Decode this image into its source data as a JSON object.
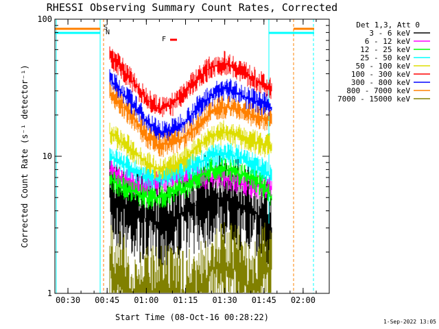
{
  "chart_data": {
    "type": "line",
    "title": "RHESSI Observing Summary Count Rates, Corrected",
    "xlabel": "Start Time (08-Oct-16 00:28:22)",
    "ylabel": "Corrected Count Rate (s⁻¹ detector⁻¹)",
    "y_scale": "log",
    "ylim": [
      1,
      100
    ],
    "xlim": [
      "00:25",
      "02:10"
    ],
    "x_tick_labels": [
      "00:30",
      "00:45",
      "01:00",
      "01:15",
      "01:30",
      "01:45",
      "02:00"
    ],
    "y_tick_labels": [
      "1",
      "10",
      "100"
    ],
    "legend_title": "Det 1,3, Att 0",
    "legend_position": "right",
    "timestamp": "1-Sep-2022 13:05",
    "flags": [
      {
        "label": "S",
        "color": "#ff8000"
      },
      {
        "label": "N",
        "color": "#00ffff"
      },
      {
        "label": "F",
        "color": "#ff0000"
      }
    ],
    "series": [
      {
        "name": "3 - 6 keV",
        "color": "#000000",
        "x": [
          "00:46",
          "00:50",
          "00:55",
          "01:00",
          "01:05",
          "01:10",
          "01:15",
          "01:20",
          "01:25",
          "01:30",
          "01:35",
          "01:40",
          "01:45",
          "01:48"
        ],
        "values": [
          5,
          4.5,
          4,
          3.5,
          3.2,
          3.5,
          4,
          4.5,
          4.8,
          5,
          4.5,
          4,
          3.5,
          2.5
        ]
      },
      {
        "name": "6 - 12 keV",
        "color": "#ff00ff",
        "x": [
          "00:46",
          "00:50",
          "00:55",
          "01:00",
          "01:05",
          "01:10",
          "01:15",
          "01:20",
          "01:25",
          "01:30",
          "01:35",
          "01:40",
          "01:45",
          "01:48"
        ],
        "values": [
          8,
          7,
          6.5,
          6,
          6.5,
          7,
          7,
          7,
          7,
          7,
          6.5,
          6,
          6,
          6
        ]
      },
      {
        "name": "12 - 25 keV",
        "color": "#00ff00",
        "x": [
          "00:46",
          "00:50",
          "00:55",
          "01:00",
          "01:05",
          "01:10",
          "01:15",
          "01:20",
          "01:25",
          "01:30",
          "01:35",
          "01:40",
          "01:45",
          "01:48"
        ],
        "values": [
          7,
          6,
          5.5,
          5,
          5,
          5.5,
          6,
          7,
          8,
          8,
          7.5,
          7,
          6,
          5
        ]
      },
      {
        "name": "25 - 50 keV",
        "color": "#00ffff",
        "x": [
          "00:46",
          "00:50",
          "00:55",
          "01:00",
          "01:05",
          "01:10",
          "01:15",
          "01:20",
          "01:25",
          "01:30",
          "01:35",
          "01:40",
          "01:45",
          "01:48"
        ],
        "values": [
          10,
          9,
          8,
          7,
          7,
          7.5,
          8,
          9,
          10,
          10.5,
          10,
          9,
          8,
          7
        ]
      },
      {
        "name": "50 - 100 keV",
        "color": "#dddd00",
        "x": [
          "00:46",
          "00:50",
          "00:55",
          "01:00",
          "01:05",
          "01:10",
          "01:15",
          "01:20",
          "01:25",
          "01:30",
          "01:35",
          "01:40",
          "01:45",
          "01:48"
        ],
        "values": [
          15,
          13,
          11,
          9,
          8,
          8.5,
          9.5,
          12,
          14,
          15,
          14,
          13,
          12,
          12
        ]
      },
      {
        "name": "100 - 300 keV",
        "color": "#ff0000",
        "x": [
          "00:46",
          "00:50",
          "00:55",
          "01:00",
          "01:05",
          "01:10",
          "01:15",
          "01:20",
          "01:25",
          "01:30",
          "01:35",
          "01:40",
          "01:45",
          "01:48"
        ],
        "values": [
          55,
          45,
          35,
          26,
          22,
          24,
          30,
          38,
          45,
          48,
          44,
          38,
          33,
          30
        ]
      },
      {
        "name": "300 - 800 keV",
        "color": "#0000ff",
        "x": [
          "00:46",
          "00:50",
          "00:55",
          "01:00",
          "01:05",
          "01:10",
          "01:15",
          "01:20",
          "01:25",
          "01:30",
          "01:35",
          "01:40",
          "01:45",
          "01:48"
        ],
        "values": [
          37,
          30,
          24,
          18,
          15,
          15.5,
          18,
          23,
          28,
          31,
          29,
          26,
          24,
          22
        ]
      },
      {
        "name": "800 - 7000 keV",
        "color": "#ff8000",
        "x": [
          "00:46",
          "00:50",
          "00:55",
          "01:00",
          "01:05",
          "01:10",
          "01:15",
          "01:20",
          "01:25",
          "01:30",
          "01:35",
          "01:40",
          "01:45",
          "01:48"
        ],
        "values": [
          30,
          24,
          19,
          14,
          12,
          12.5,
          14,
          17,
          21,
          23,
          22,
          20,
          19,
          18
        ]
      },
      {
        "name": "7000 - 15000 keV",
        "color": "#808000",
        "x": [
          "00:46",
          "00:50",
          "00:55",
          "01:00",
          "01:05",
          "01:10",
          "01:15",
          "01:20",
          "01:25",
          "01:30",
          "01:35",
          "01:40",
          "01:45",
          "01:48"
        ],
        "values": [
          1.5,
          1.3,
          1,
          1,
          1,
          1,
          1,
          1,
          1.5,
          1.5,
          1.5,
          1,
          1.5,
          1.5
        ]
      }
    ]
  }
}
